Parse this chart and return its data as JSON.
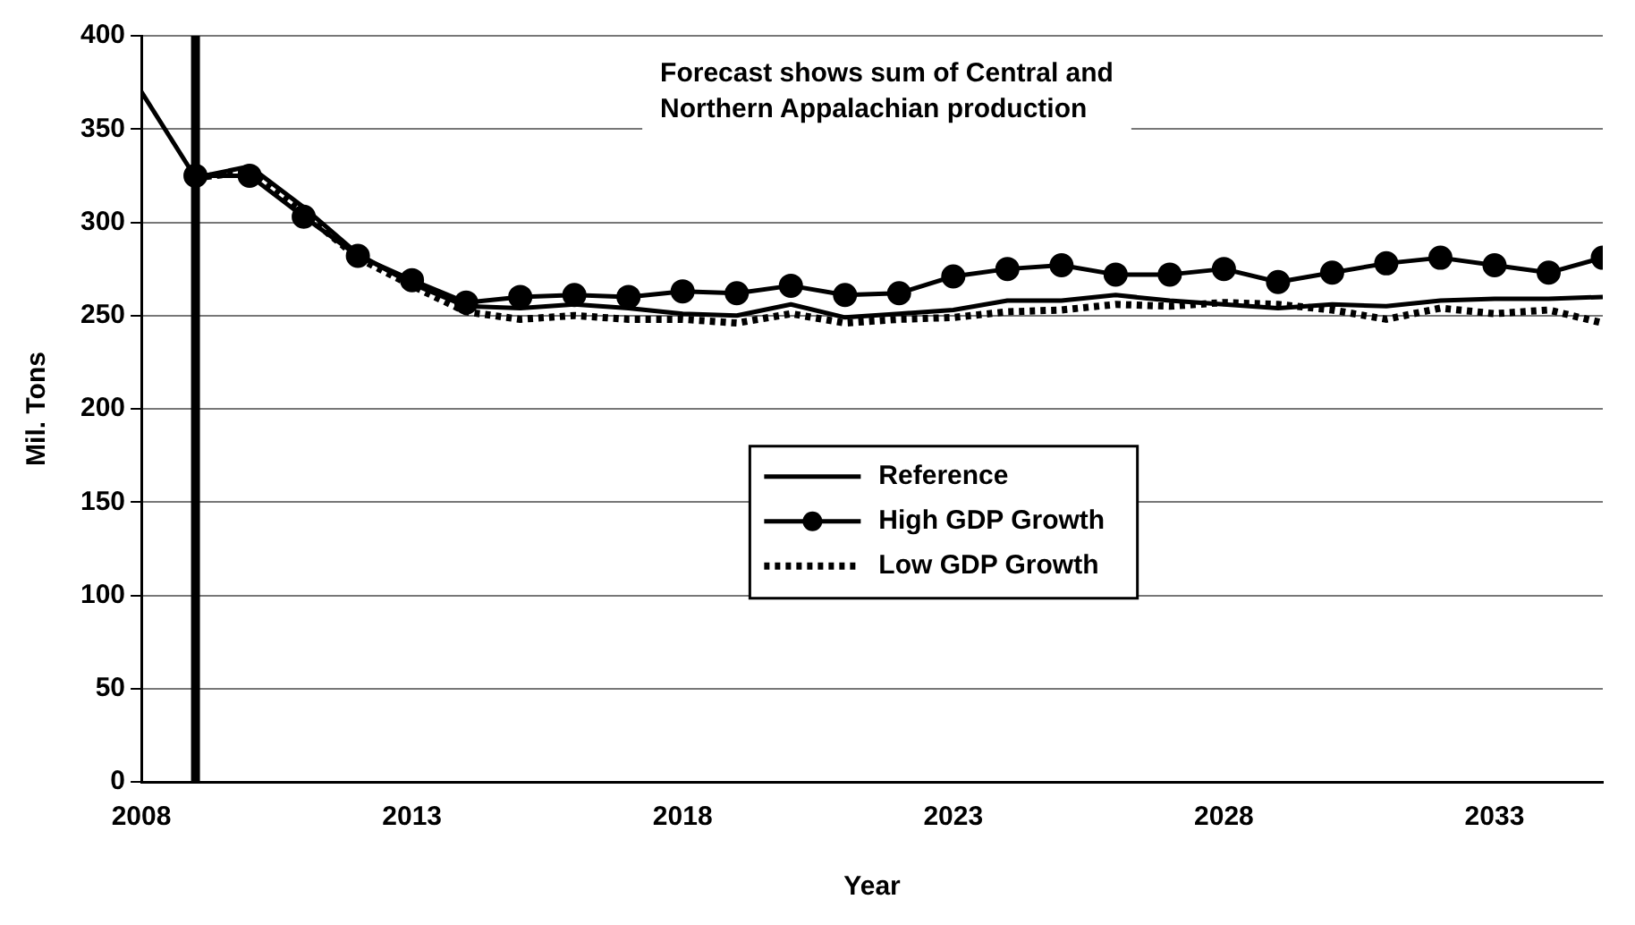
{
  "chart_data": {
    "type": "line",
    "xlabel": "Year",
    "ylabel": "Mil. Tons",
    "x": [
      2008,
      2009,
      2010,
      2011,
      2012,
      2013,
      2014,
      2015,
      2016,
      2017,
      2018,
      2019,
      2020,
      2021,
      2022,
      2023,
      2024,
      2025,
      2026,
      2027,
      2028,
      2029,
      2030,
      2031,
      2032,
      2033,
      2034,
      2035
    ],
    "series": [
      {
        "name": "Reference",
        "color": "#000000",
        "marker": "none",
        "line_style": "solid",
        "values": [
          370,
          324,
          330,
          308,
          283,
          267,
          255,
          254,
          256,
          254,
          251,
          250,
          256,
          249,
          251,
          253,
          258,
          258,
          261,
          258,
          256,
          254,
          256,
          255,
          258,
          259,
          259,
          260
        ]
      },
      {
        "name": "High GDP Growth",
        "color": "#000000",
        "marker": "circle",
        "line_style": "solid",
        "values": [
          null,
          325,
          325,
          303,
          282,
          269,
          257,
          260,
          261,
          260,
          263,
          262,
          266,
          261,
          262,
          271,
          275,
          277,
          272,
          272,
          275,
          268,
          273,
          278,
          281,
          277,
          273,
          281
        ]
      },
      {
        "name": "Low GDP Growth",
        "color": "#000000",
        "marker": "none",
        "line_style": "dotted",
        "values": [
          null,
          324,
          327,
          305,
          281,
          266,
          252,
          248,
          250,
          248,
          248,
          246,
          251,
          246,
          248,
          249,
          252,
          253,
          256,
          255,
          257,
          256,
          253,
          248,
          254,
          251,
          253,
          246
        ]
      }
    ],
    "xlim": [
      2008,
      2035
    ],
    "xticks": [
      2008,
      2013,
      2018,
      2023,
      2028,
      2033
    ],
    "ylim": [
      0,
      400
    ],
    "yticks": [
      0,
      50,
      100,
      150,
      200,
      250,
      300,
      350,
      400
    ],
    "grid": "y",
    "legend": "center",
    "ref_lines": [
      {
        "axis": "x",
        "value": 2009,
        "color": "#000000"
      }
    ],
    "annotations": [
      "Forecast shows sum of Central and Northern Appalachian production"
    ]
  }
}
